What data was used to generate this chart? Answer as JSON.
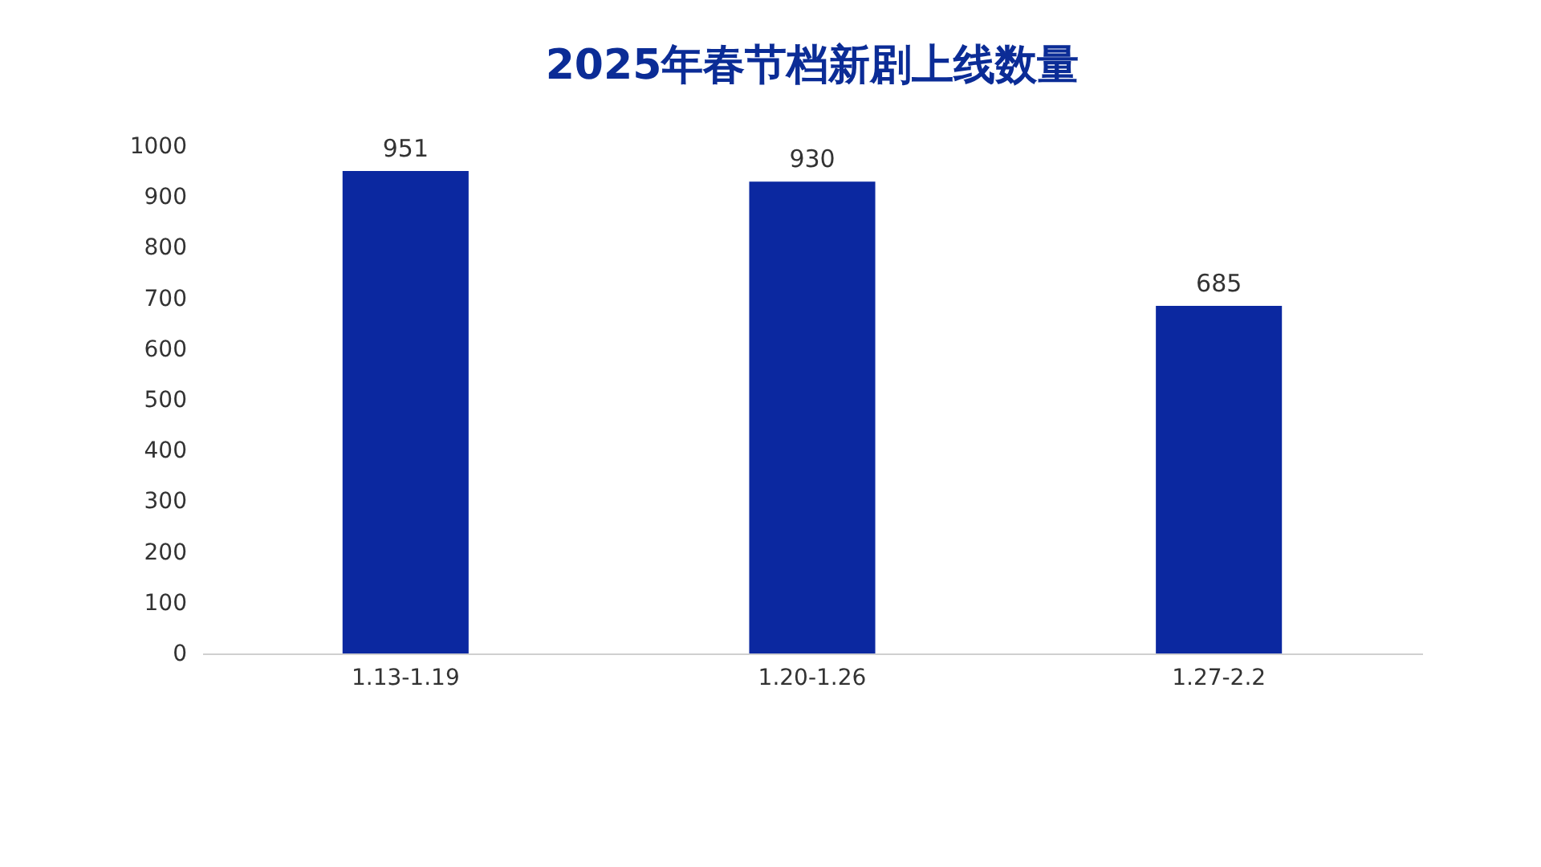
{
  "chart_data": {
    "type": "bar",
    "title": "2025年春节档新剧上线数量",
    "categories": [
      "1.13-1.19",
      "1.20-1.26",
      "1.27-2.2"
    ],
    "values": [
      951,
      930,
      685
    ],
    "color": "#0b28a0",
    "ylim": [
      0,
      1000
    ],
    "yticks": [
      0,
      100,
      200,
      300,
      400,
      500,
      600,
      700,
      800,
      900,
      1000
    ],
    "data_labels": true,
    "grid": false
  }
}
